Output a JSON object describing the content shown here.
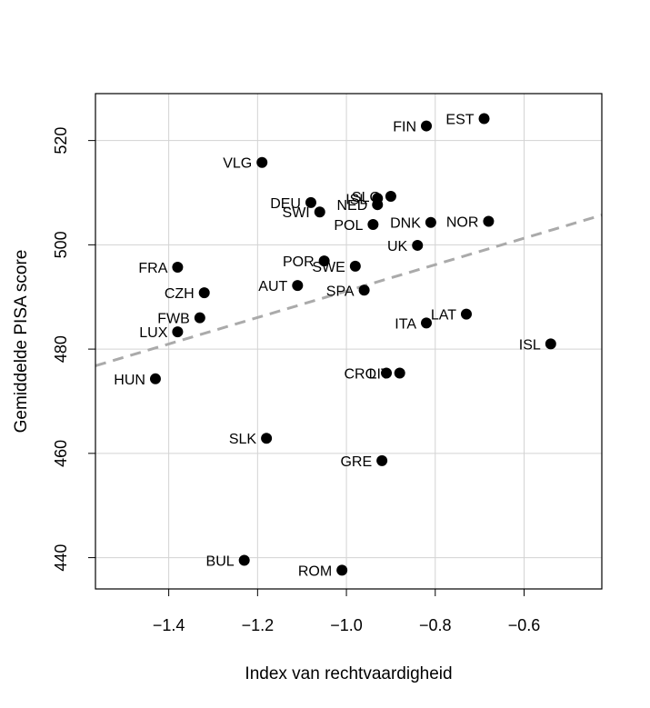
{
  "chart_data": {
    "type": "scatter",
    "xlabel": "Index van rechtvaardigheid",
    "ylabel": "Gemiddelde PISA score",
    "xlim": [
      -1.565,
      -0.425
    ],
    "ylim": [
      434,
      529
    ],
    "x_ticks": [
      -1.4,
      -1.2,
      -1.0,
      -0.8,
      -0.6
    ],
    "x_tick_labels": [
      "−1.4",
      "−1.2",
      "−1.0",
      "−0.8",
      "−0.6"
    ],
    "y_ticks": [
      440,
      460,
      480,
      500,
      520
    ],
    "y_tick_labels": [
      "440",
      "460",
      "480",
      "500",
      "520"
    ],
    "grid": true,
    "trendline": {
      "style": "dashed",
      "color": "#aaaaaa",
      "x": [
        -1.565,
        -0.425
      ],
      "y": [
        476.8,
        505.7
      ]
    },
    "point_color": "#000000",
    "points": [
      {
        "label": "EST",
        "x": -0.69,
        "y": 524.2
      },
      {
        "label": "FIN",
        "x": -0.82,
        "y": 522.8
      },
      {
        "label": "VLG",
        "x": -1.19,
        "y": 515.8
      },
      {
        "label": "SLO",
        "x": -0.9,
        "y": 509.3
      },
      {
        "label": "ISL",
        "x": -0.93,
        "y": 508.9
      },
      {
        "label": "DEU",
        "x": -1.08,
        "y": 508.1
      },
      {
        "label": "NED",
        "x": -0.93,
        "y": 507.7
      },
      {
        "label": "SWI",
        "x": -1.06,
        "y": 506.3
      },
      {
        "label": "POL",
        "x": -0.94,
        "y": 503.9
      },
      {
        "label": "DNK",
        "x": -0.81,
        "y": 504.3
      },
      {
        "label": "NOR",
        "x": -0.68,
        "y": 504.5
      },
      {
        "label": "UK",
        "x": -0.84,
        "y": 499.9
      },
      {
        "label": "POR",
        "x": -1.05,
        "y": 496.9
      },
      {
        "label": "SWE",
        "x": -0.98,
        "y": 495.9
      },
      {
        "label": "FRA",
        "x": -1.38,
        "y": 495.7
      },
      {
        "label": "AUT",
        "x": -1.11,
        "y": 492.2
      },
      {
        "label": "SPA",
        "x": -0.96,
        "y": 491.3
      },
      {
        "label": "CZH",
        "x": -1.32,
        "y": 490.8
      },
      {
        "label": "LAT",
        "x": -0.73,
        "y": 486.7
      },
      {
        "label": "FWB",
        "x": -1.33,
        "y": 486.0
      },
      {
        "label": "ITA",
        "x": -0.82,
        "y": 485.0
      },
      {
        "label": "LUX",
        "x": -1.38,
        "y": 483.3
      },
      {
        "label": "ISL",
        "x": -0.54,
        "y": 481.0
      },
      {
        "label": "HUN",
        "x": -1.43,
        "y": 474.3
      },
      {
        "label": "CRO",
        "x": -0.91,
        "y": 475.4
      },
      {
        "label": "LIT",
        "x": -0.88,
        "y": 475.4
      },
      {
        "label": "SLK",
        "x": -1.18,
        "y": 462.9
      },
      {
        "label": "GRE",
        "x": -0.92,
        "y": 458.6
      },
      {
        "label": "BUL",
        "x": -1.23,
        "y": 439.5
      },
      {
        "label": "ROM",
        "x": -1.01,
        "y": 437.6
      }
    ]
  }
}
